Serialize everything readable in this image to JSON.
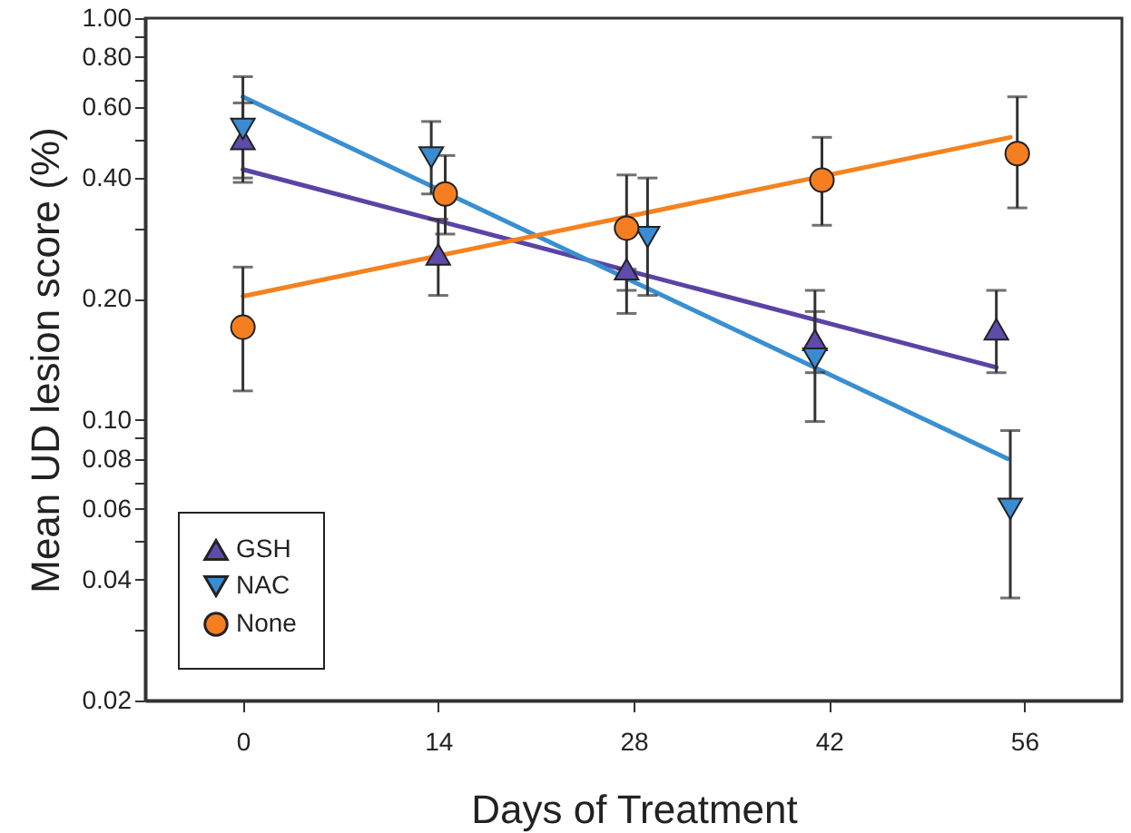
{
  "chart_data": {
    "type": "scatter",
    "xlabel": "Days of Treatment",
    "ylabel": "Mean UD lesion score (%)",
    "log": true,
    "legend": "bottom left",
    "grid": false,
    "xlim": [
      -7,
      63
    ],
    "xticks": [
      0,
      14,
      28,
      42,
      56
    ],
    "ylim": [
      0.02,
      1.0
    ],
    "yticks": [
      {
        "value": 0.02,
        "label": "0.02"
      },
      {
        "value": 0.03,
        "label": null
      },
      {
        "value": 0.04,
        "label": "0.04"
      },
      {
        "value": 0.05,
        "label": null
      },
      {
        "value": 0.06,
        "label": "0.06"
      },
      {
        "value": 0.07,
        "label": null
      },
      {
        "value": 0.08,
        "label": "0.08"
      },
      {
        "value": 0.09,
        "label": null
      },
      {
        "value": 0.1,
        "label": "0.10"
      },
      {
        "value": 0.2,
        "label": "0.20"
      },
      {
        "value": 0.3,
        "label": null
      },
      {
        "value": 0.4,
        "label": "0.40"
      },
      {
        "value": 0.5,
        "label": null
      },
      {
        "value": 0.6,
        "label": "0.60"
      },
      {
        "value": 0.7,
        "label": null
      },
      {
        "value": 0.8,
        "label": "0.80"
      },
      {
        "value": 0.9,
        "label": null
      },
      {
        "value": 1.0,
        "label": "1.00"
      }
    ],
    "series": [
      {
        "type": "line",
        "color": "#5b43a6",
        "x": [
          0,
          54
        ],
        "values": [
          0.42,
          0.135
        ]
      },
      {
        "type": "line",
        "color": "#3a8fd0",
        "x": [
          0,
          54.8
        ],
        "values": [
          0.637,
          0.08
        ]
      },
      {
        "type": "line",
        "color": "#f5821f",
        "x": [
          0,
          55
        ],
        "values": [
          0.203,
          0.505
        ]
      },
      {
        "name": "GSH",
        "color": "#5e4bab",
        "marker": "triangle",
        "x": [
          0,
          14,
          27.5,
          41,
          54
        ],
        "values": [
          0.5,
          0.258,
          0.237,
          0.158,
          0.168
        ],
        "errors": [
          [
            0.4,
            0.615
          ],
          [
            0.204,
            0.316
          ],
          [
            0.184,
            0.237
          ],
          [
            0.131,
            0.186
          ],
          [
            0.131,
            0.21
          ]
        ]
      },
      {
        "name": "NAC",
        "color": "#3b8bd0",
        "marker": "triangle-down",
        "x": [
          0,
          13.5,
          29,
          41,
          55
        ],
        "values": [
          0.53,
          0.45,
          0.285,
          0.142,
          0.06
        ],
        "errors": [
          [
            0.39,
            0.715
          ],
          [
            0.365,
            0.553
          ],
          [
            0.204,
            0.4
          ],
          [
            0.099,
            0.21
          ],
          [
            0.036,
            0.094
          ]
        ]
      },
      {
        "name": "None",
        "color": "#f57f20",
        "marker": "circle",
        "x": [
          0,
          14.5,
          27.5,
          41.5,
          55.5
        ],
        "values": [
          0.17,
          0.365,
          0.3,
          0.395,
          0.46
        ],
        "errors": [
          [
            0.118,
            0.24
          ],
          [
            0.29,
            0.455
          ],
          [
            0.21,
            0.407
          ],
          [
            0.305,
            0.505
          ],
          [
            0.337,
            0.637
          ]
        ]
      }
    ]
  }
}
